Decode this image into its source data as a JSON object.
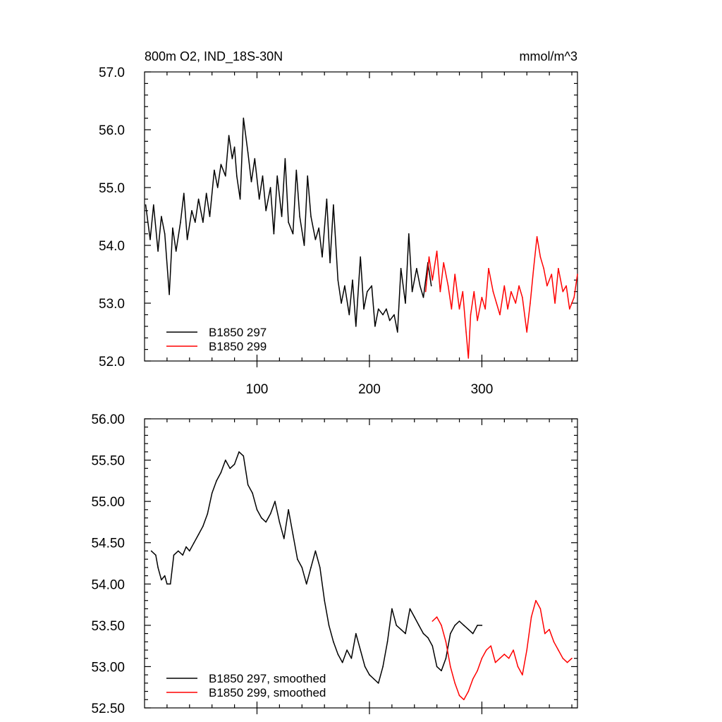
{
  "top_chart": {
    "title_left": "800m O2, IND_18S-30N",
    "title_right": "mmol/m^3"
  },
  "chart_data": [
    {
      "type": "line",
      "title": "800m O2, IND_18S-30N",
      "units": "mmol/m^3",
      "xlim": [
        0,
        385
      ],
      "ylim": [
        52.0,
        57.0
      ],
      "x_ticks": [
        "100",
        "200",
        "300"
      ],
      "y_ticks": [
        "52.0",
        "53.0",
        "54.0",
        "55.0",
        "56.0",
        "57.0"
      ],
      "legend_position": "bottom-left",
      "series": [
        {
          "name": "B1850 297",
          "color": "#000000",
          "x": [
            1,
            5,
            8,
            12,
            15,
            18,
            22,
            25,
            28,
            32,
            35,
            38,
            42,
            45,
            48,
            52,
            55,
            58,
            62,
            65,
            68,
            72,
            75,
            78,
            80,
            82,
            85,
            88,
            92,
            95,
            98,
            102,
            105,
            108,
            112,
            115,
            118,
            122,
            125,
            128,
            132,
            135,
            138,
            142,
            145,
            148,
            152,
            155,
            158,
            162,
            165,
            168,
            172,
            175,
            178,
            182,
            185,
            188,
            192,
            195,
            198,
            202,
            205,
            208,
            212,
            215,
            218,
            222,
            225,
            228,
            232,
            235,
            238,
            242,
            245,
            248,
            252,
            255
          ],
          "values": [
            54.7,
            54.1,
            54.7,
            53.9,
            54.5,
            54.2,
            53.15,
            54.3,
            53.9,
            54.4,
            54.9,
            54.1,
            54.6,
            54.4,
            54.8,
            54.4,
            54.9,
            54.5,
            55.3,
            55.0,
            55.4,
            55.2,
            55.9,
            55.5,
            55.7,
            55.2,
            54.8,
            56.2,
            55.6,
            55.1,
            55.5,
            54.8,
            55.2,
            54.6,
            55.0,
            54.2,
            55.2,
            54.5,
            55.5,
            54.4,
            54.2,
            55.3,
            54.5,
            54.0,
            55.2,
            54.5,
            54.1,
            54.3,
            53.8,
            54.8,
            53.7,
            54.7,
            53.4,
            53.0,
            53.3,
            52.8,
            53.4,
            52.6,
            53.8,
            52.9,
            53.2,
            53.3,
            52.6,
            52.9,
            52.8,
            52.9,
            52.7,
            52.8,
            52.5,
            53.6,
            53.0,
            54.2,
            53.2,
            53.6,
            53.3,
            53.1,
            53.7,
            53.3
          ]
        },
        {
          "name": "B1850 299",
          "color": "#ff0000",
          "x": [
            250,
            253,
            256,
            260,
            263,
            266,
            270,
            273,
            276,
            280,
            283,
            286,
            288,
            290,
            293,
            296,
            300,
            303,
            306,
            310,
            313,
            316,
            320,
            323,
            326,
            330,
            333,
            336,
            340,
            343,
            346,
            349,
            352,
            355,
            358,
            362,
            365,
            368,
            372,
            375,
            378,
            382,
            385
          ],
          "values": [
            53.2,
            53.8,
            53.4,
            53.9,
            53.2,
            53.7,
            53.3,
            52.9,
            53.5,
            52.9,
            53.2,
            52.5,
            52.05,
            52.8,
            53.2,
            52.7,
            53.1,
            52.9,
            53.6,
            53.2,
            53.0,
            52.8,
            53.3,
            52.9,
            53.2,
            53.0,
            53.3,
            53.1,
            52.5,
            53.0,
            53.6,
            54.15,
            53.8,
            53.6,
            53.3,
            53.5,
            53.0,
            53.6,
            53.2,
            53.3,
            52.9,
            53.1,
            53.5
          ]
        }
      ]
    },
    {
      "type": "line",
      "xlim": [
        0,
        385
      ],
      "ylim": [
        52.5,
        56.0
      ],
      "y_ticks": [
        "52.50",
        "53.00",
        "53.50",
        "54.00",
        "54.50",
        "55.00",
        "55.50",
        "56.00"
      ],
      "legend_position": "bottom-left",
      "series": [
        {
          "name": "B1850 297, smoothed",
          "color": "#000000",
          "x": [
            6,
            10,
            12,
            15,
            18,
            20,
            23,
            26,
            30,
            34,
            37,
            40,
            44,
            48,
            52,
            56,
            60,
            64,
            68,
            72,
            76,
            80,
            84,
            88,
            92,
            96,
            100,
            104,
            108,
            112,
            116,
            120,
            124,
            128,
            132,
            136,
            140,
            144,
            148,
            152,
            156,
            160,
            164,
            168,
            172,
            176,
            180,
            184,
            188,
            192,
            196,
            200,
            204,
            208,
            212,
            216,
            220,
            224,
            228,
            232,
            236,
            240,
            244,
            248,
            252,
            256,
            260,
            264,
            268,
            272,
            276,
            280,
            284,
            288,
            292,
            296,
            300
          ],
          "values": [
            54.4,
            54.35,
            54.2,
            54.05,
            54.1,
            54.0,
            54.0,
            54.35,
            54.4,
            54.35,
            54.45,
            54.4,
            54.5,
            54.6,
            54.7,
            54.85,
            55.1,
            55.25,
            55.35,
            55.5,
            55.4,
            55.45,
            55.6,
            55.55,
            55.2,
            55.1,
            54.9,
            54.8,
            54.75,
            54.85,
            55.0,
            54.75,
            54.55,
            54.9,
            54.6,
            54.3,
            54.2,
            54.0,
            54.2,
            54.4,
            54.2,
            53.8,
            53.5,
            53.3,
            53.15,
            53.05,
            53.2,
            53.1,
            53.4,
            53.2,
            53.0,
            52.9,
            52.85,
            52.8,
            53.0,
            53.3,
            53.7,
            53.5,
            53.45,
            53.4,
            53.7,
            53.6,
            53.5,
            53.4,
            53.35,
            53.25,
            53.0,
            52.95,
            53.1,
            53.4,
            53.5,
            53.55,
            53.5,
            53.45,
            53.4,
            53.5,
            53.5
          ]
        },
        {
          "name": "B1850 299, smoothed",
          "color": "#ff0000",
          "x": [
            256,
            260,
            264,
            268,
            272,
            276,
            280,
            284,
            288,
            292,
            296,
            300,
            304,
            308,
            312,
            316,
            320,
            324,
            328,
            332,
            336,
            340,
            344,
            348,
            352,
            356,
            360,
            364,
            368,
            372,
            376,
            380
          ],
          "values": [
            53.55,
            53.6,
            53.5,
            53.3,
            53.0,
            52.8,
            52.65,
            52.6,
            52.7,
            52.85,
            52.95,
            53.1,
            53.2,
            53.25,
            53.05,
            53.1,
            53.15,
            53.1,
            53.2,
            53.0,
            52.9,
            53.2,
            53.6,
            53.8,
            53.7,
            53.4,
            53.45,
            53.3,
            53.2,
            53.1,
            53.05,
            53.1
          ]
        }
      ]
    }
  ]
}
